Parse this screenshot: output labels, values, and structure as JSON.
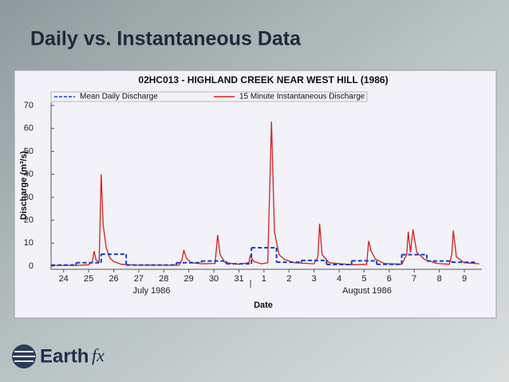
{
  "slide_title": "Daily vs. Instantaneous Data",
  "logo": {
    "name": "Earth",
    "suffix": "fx"
  },
  "chart_data": {
    "type": "line",
    "title": "02HC013 - HIGHLAND CREEK NEAR WEST HILL (1986)",
    "x_label": "Date",
    "y_label": "Discharge (m³/s)",
    "month_labels": [
      "July 1986",
      "August 1986"
    ],
    "xlim": [
      23.5,
      40.7
    ],
    "xticks": [
      24,
      25,
      26,
      27,
      28,
      29,
      30,
      31,
      {
        "value": 32,
        "label": "1"
      },
      {
        "value": 33,
        "label": "2"
      },
      {
        "value": 34,
        "label": "3"
      },
      {
        "value": 35,
        "label": "4"
      },
      {
        "value": 36,
        "label": "5"
      },
      {
        "value": 37,
        "label": "6"
      },
      {
        "value": 38,
        "label": "7"
      },
      {
        "value": 39,
        "label": "8"
      },
      {
        "value": 40,
        "label": "9"
      }
    ],
    "ylim": [
      0,
      70
    ],
    "yticks": [
      0,
      10,
      20,
      30,
      40,
      50,
      60,
      70
    ],
    "grid": false,
    "legend": "top",
    "series": [
      {
        "name": "Mean Daily Discharge",
        "color": "#1a3cc8",
        "dash": true,
        "step": true,
        "x": [
          24,
          25,
          26,
          27,
          28,
          29,
          30,
          31,
          32,
          33,
          34,
          35,
          36,
          37,
          38,
          39,
          40
        ],
        "values": [
          0.5,
          1.5,
          5.2,
          0.5,
          0.5,
          1.5,
          2.2,
          1,
          8,
          1.7,
          2.5,
          0.7,
          2.3,
          0.8,
          5,
          2.2,
          1.7
        ]
      },
      {
        "name": "15 Minute Instantaneous Discharge",
        "color": "#d42020",
        "dash": false,
        "step": false,
        "x": [
          23.5,
          24.5,
          25.0,
          25.15,
          25.22,
          25.3,
          25.42,
          25.5,
          25.58,
          25.7,
          25.85,
          26.0,
          26.3,
          27,
          28.6,
          28.72,
          28.8,
          28.9,
          29.1,
          29.5,
          30.05,
          30.15,
          30.25,
          30.45,
          31.0,
          31.4,
          31.45,
          31.6,
          31.9,
          32.15,
          32.3,
          32.42,
          32.6,
          32.8,
          33.2,
          34.0,
          34.15,
          34.22,
          34.32,
          34.6,
          35.5,
          36.1,
          36.18,
          36.28,
          36.45,
          36.8,
          37.5,
          37.7,
          37.76,
          37.85,
          37.95,
          38.1,
          38.4,
          38.9,
          39.4,
          39.5,
          39.56,
          39.68,
          40.0,
          40.6
        ],
        "values": [
          0.3,
          0.3,
          0.6,
          2,
          6.5,
          2.5,
          2,
          40,
          18,
          8,
          3.5,
          2,
          0.8,
          0.4,
          0.4,
          2.5,
          7,
          3.5,
          1.5,
          1,
          1.2,
          13.5,
          5,
          1.5,
          0.8,
          1.5,
          4.5,
          2,
          1,
          1.5,
          63,
          15,
          5,
          3,
          1.5,
          1.0,
          4,
          18.5,
          5,
          1.5,
          0.6,
          0.8,
          11,
          6.5,
          3,
          1.2,
          0.8,
          5,
          15,
          6,
          16,
          6,
          3,
          1.2,
          0.8,
          5,
          15.5,
          4,
          1.5,
          1
        ]
      }
    ]
  }
}
